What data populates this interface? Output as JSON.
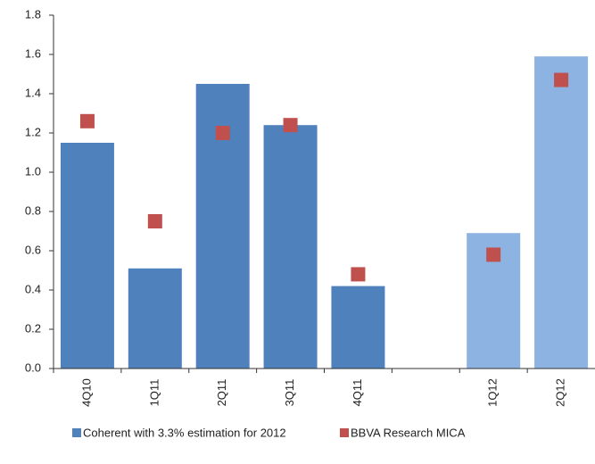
{
  "chart_data": {
    "type": "bar",
    "categories": [
      "4Q10",
      "1Q11",
      "2Q11",
      "3Q11",
      "4Q11",
      null,
      "1Q12",
      "2Q12"
    ],
    "series": [
      {
        "name": "Coherent with 3.3% estimation for 2012",
        "type": "bar",
        "color": "#4f81bd",
        "colors": [
          "#4f81bd",
          "#4f81bd",
          "#4f81bd",
          "#4f81bd",
          "#4f81bd",
          null,
          "#8db3e2",
          "#8db3e2"
        ],
        "values": [
          1.15,
          0.51,
          1.45,
          1.24,
          0.42,
          null,
          0.69,
          1.59
        ]
      },
      {
        "name": "BBVA Research MICA",
        "type": "scatter",
        "color": "#c0504d",
        "values": [
          1.26,
          0.75,
          1.2,
          1.24,
          0.48,
          null,
          0.58,
          1.47
        ]
      }
    ],
    "ylim": [
      0,
      1.8
    ],
    "yticks": [
      {
        "value": 0,
        "label": "0.0"
      },
      0.2,
      0.4,
      0.6,
      0.8,
      {
        "value": 1,
        "label": "1.0"
      },
      1.2,
      1.4,
      1.6,
      1.8
    ],
    "grid": false
  }
}
